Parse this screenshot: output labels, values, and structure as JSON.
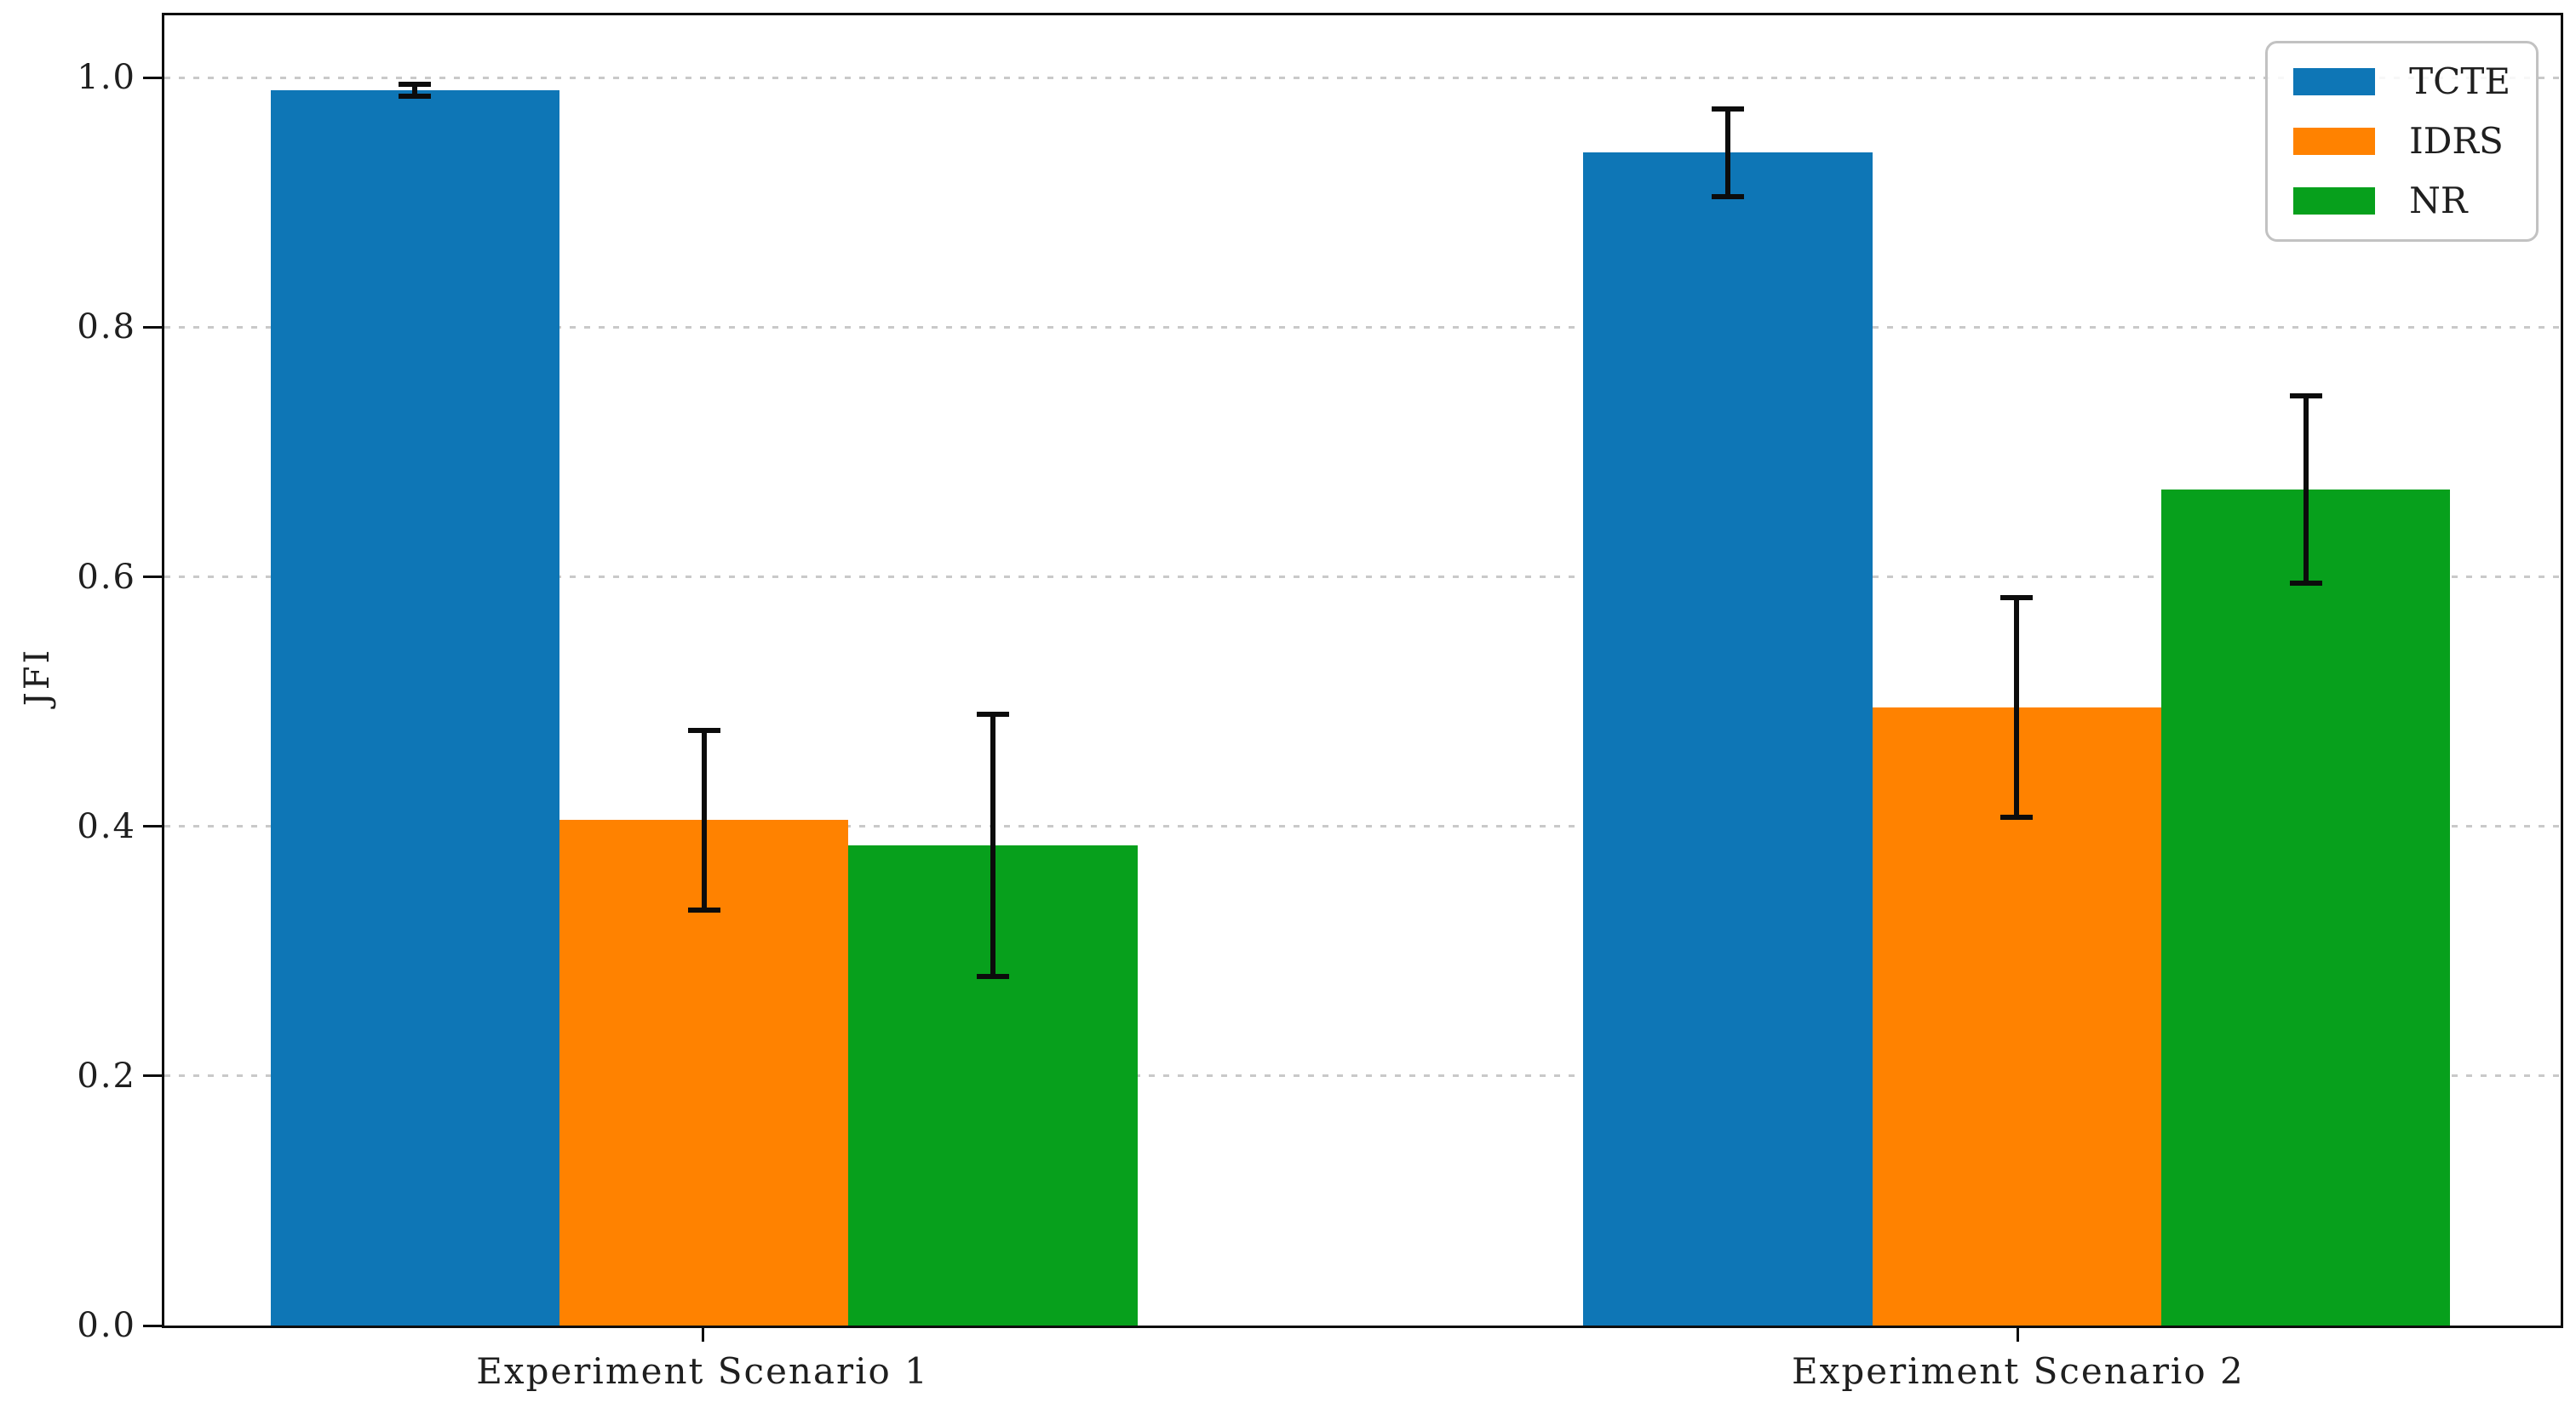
{
  "chart_data": {
    "type": "bar",
    "title": "",
    "xlabel": "",
    "ylabel": "JFI",
    "categories": [
      "Experiment Scenario 1",
      "Experiment Scenario 2"
    ],
    "series": [
      {
        "name": "TCTE",
        "color": "#0e76b6",
        "values": [
          0.99,
          0.94
        ],
        "errors": [
          0.005,
          0.035
        ]
      },
      {
        "name": "IDRS",
        "color": "#ff8200",
        "values": [
          0.405,
          0.495
        ],
        "errors": [
          0.072,
          0.088
        ]
      },
      {
        "name": "NR",
        "color": "#07a01c",
        "values": [
          0.385,
          0.67
        ],
        "errors": [
          0.105,
          0.075
        ]
      }
    ],
    "error_bars": true,
    "ylim": [
      0,
      1.05
    ],
    "y_ticks": [
      "0.0",
      "0.2",
      "0.4",
      "0.6",
      "0.8",
      "1.0"
    ],
    "y_tick_values": [
      0.0,
      0.2,
      0.4,
      0.6,
      0.8,
      1.0
    ],
    "grid": {
      "axis": "y",
      "style": "dotted",
      "color": "#c9c9c9"
    },
    "legend": {
      "position": "upper right",
      "entries": [
        "TCTE",
        "IDRS",
        "NR"
      ]
    },
    "style": {
      "background": "#ffffff",
      "text_color": "#1f1f1f",
      "frame_color": "#0d0d0d",
      "error_bar_color": "#0c0c0c",
      "legend_border_color": "#c2c2c2"
    }
  }
}
